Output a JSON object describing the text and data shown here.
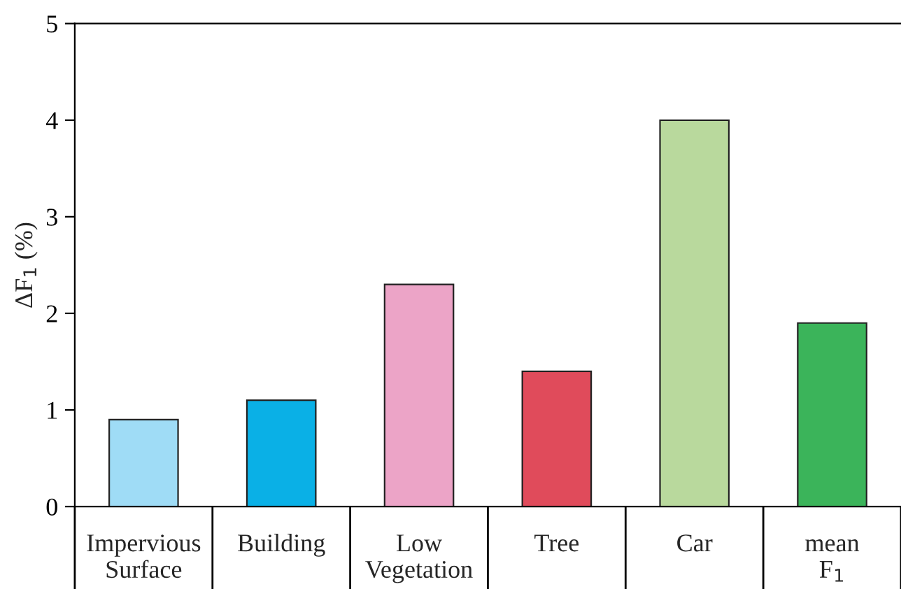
{
  "chart_data": {
    "type": "bar",
    "ylabel": "ΔF$_{1}$ (%)",
    "categories": [
      "Impervious\nSurface",
      "Building",
      "Low\nVegetation",
      "Tree",
      "Car",
      "mean\nF$_{1}$"
    ],
    "values": [
      0.9,
      1.1,
      2.3,
      1.4,
      4.0,
      1.9
    ],
    "colors": [
      "#9fdcf6",
      "#0ab0e6",
      "#eca4c7",
      "#e04b5b",
      "#b9d99d",
      "#3bb45a"
    ],
    "ylim": [
      0,
      5
    ],
    "yticks": [
      0,
      1,
      2,
      3,
      4,
      5
    ],
    "grid": false,
    "legend": false
  }
}
